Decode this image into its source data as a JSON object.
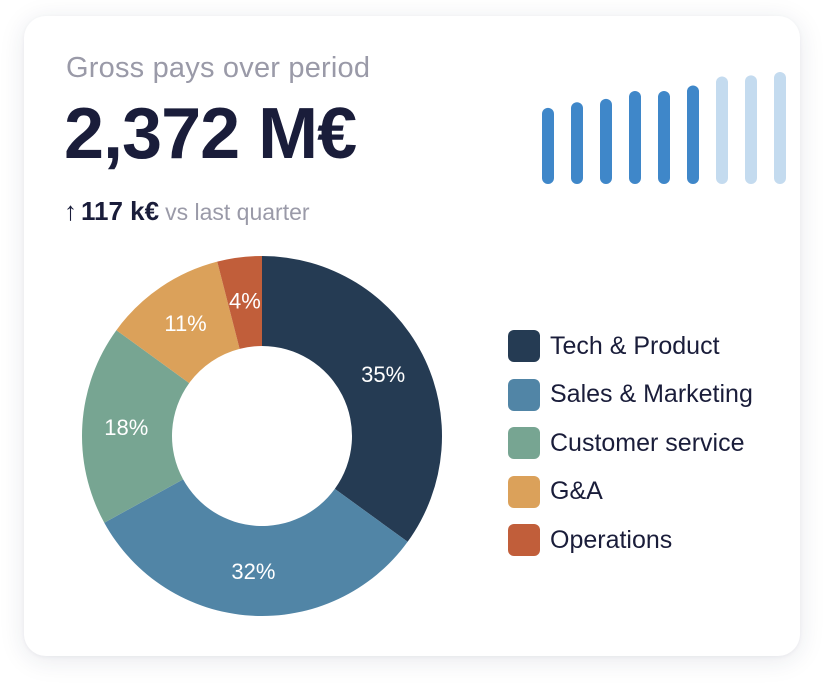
{
  "header": {
    "title": "Gross pays over period",
    "value": "2,372 M€",
    "change_arrow": "↑",
    "change_amount": "117 k€",
    "change_suffix": "vs last quarter"
  },
  "sparkline": {
    "type": "bar",
    "heights": [
      0.68,
      0.73,
      0.76,
      0.83,
      0.83,
      0.88,
      0.96,
      0.97,
      1.0
    ],
    "highlighted": [
      true,
      true,
      true,
      true,
      true,
      true,
      false,
      false,
      false
    ],
    "colors": {
      "active": "#3f87c9",
      "inactive": "#c4dbef"
    }
  },
  "chart_data": {
    "type": "pie",
    "title": "",
    "donut": true,
    "legend_position": "right",
    "categories": [
      "Tech & Product",
      "Sales & Marketing",
      "Customer service",
      "G&A",
      "Operations"
    ],
    "values": [
      35,
      32,
      18,
      11,
      4
    ],
    "labels": [
      "35%",
      "32%",
      "18%",
      "11%",
      "4%"
    ],
    "colors": [
      "#253b53",
      "#5185a6",
      "#77a592",
      "#dba15a",
      "#c15e3a"
    ]
  }
}
